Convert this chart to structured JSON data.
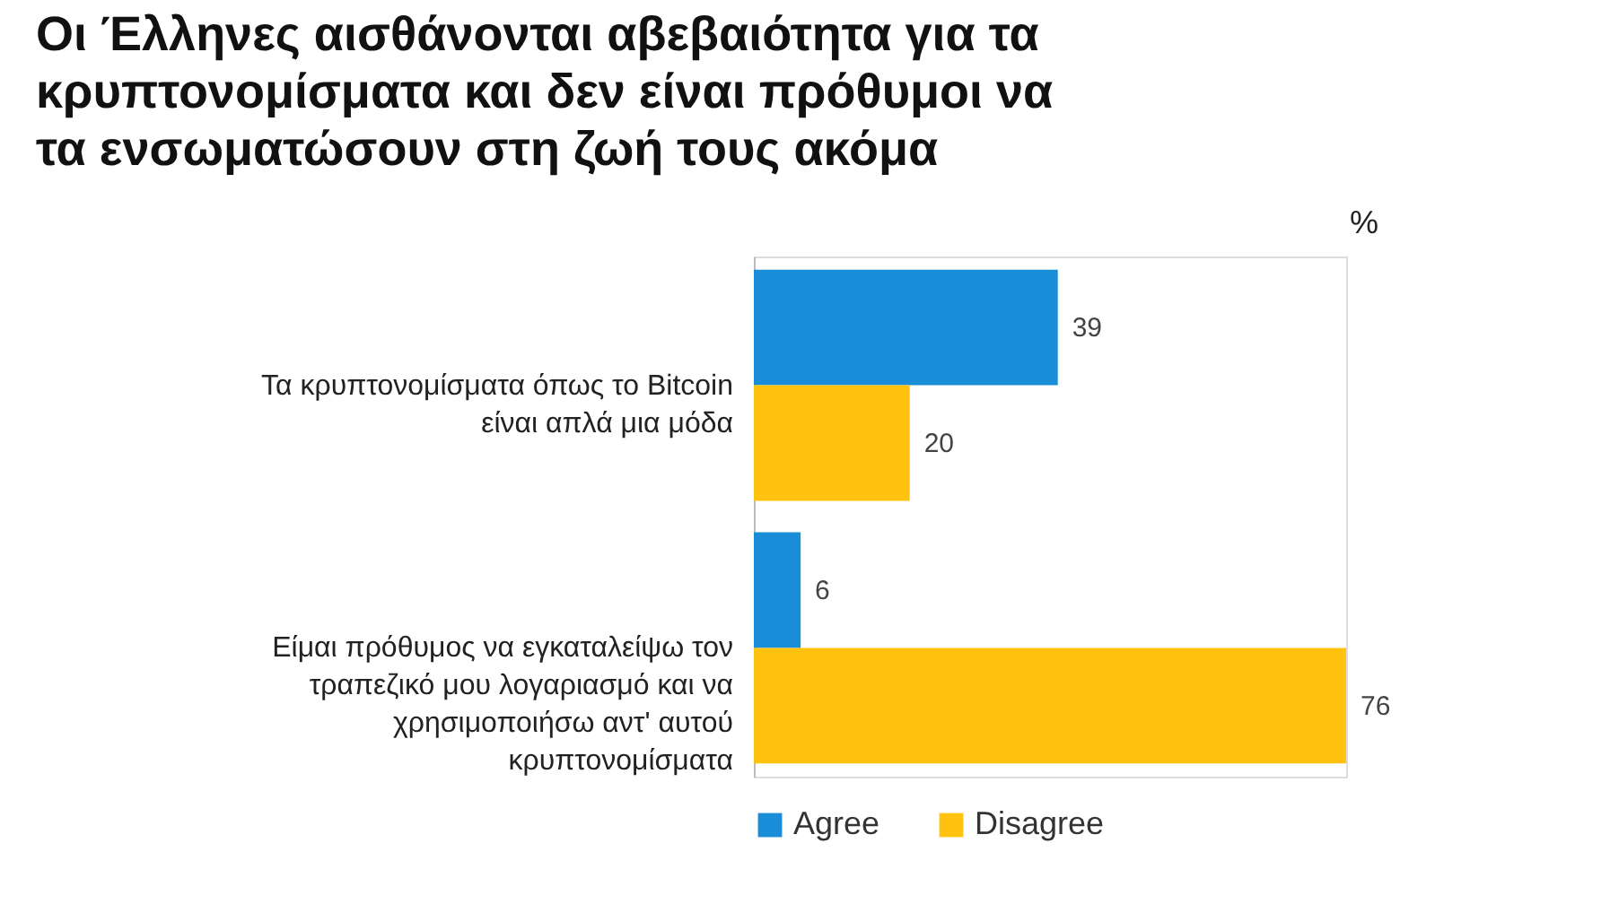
{
  "chart_data": {
    "type": "bar",
    "orientation": "horizontal",
    "title": "Οι Έλληνες αισθάνονται αβεβαιότητα για τα κρυπτονομίσματα και δεν είναι πρόθυμοι να τα ενσωματώσουν στη ζωή τους ακόμα",
    "categories": [
      "Τα κρυπτονομίσματα όπως το Bitcoin είναι απλά μια μόδα",
      "Είμαι πρόθυμος να εγκαταλείψω τον τραπεζικό μου λογαριασμό και να χρησιμοποιήσω αντ' αυτού κρυπτονομίσματα"
    ],
    "series": [
      {
        "name": "Agree",
        "color": "#1a8dd8",
        "values": [
          39,
          6
        ]
      },
      {
        "name": "Disagree",
        "color": "#ffc20e",
        "values": [
          20,
          76
        ]
      }
    ],
    "data_labels": true,
    "grid": false,
    "legend": "bottom",
    "tick_labels": "y",
    "annotations": [
      "%"
    ]
  }
}
